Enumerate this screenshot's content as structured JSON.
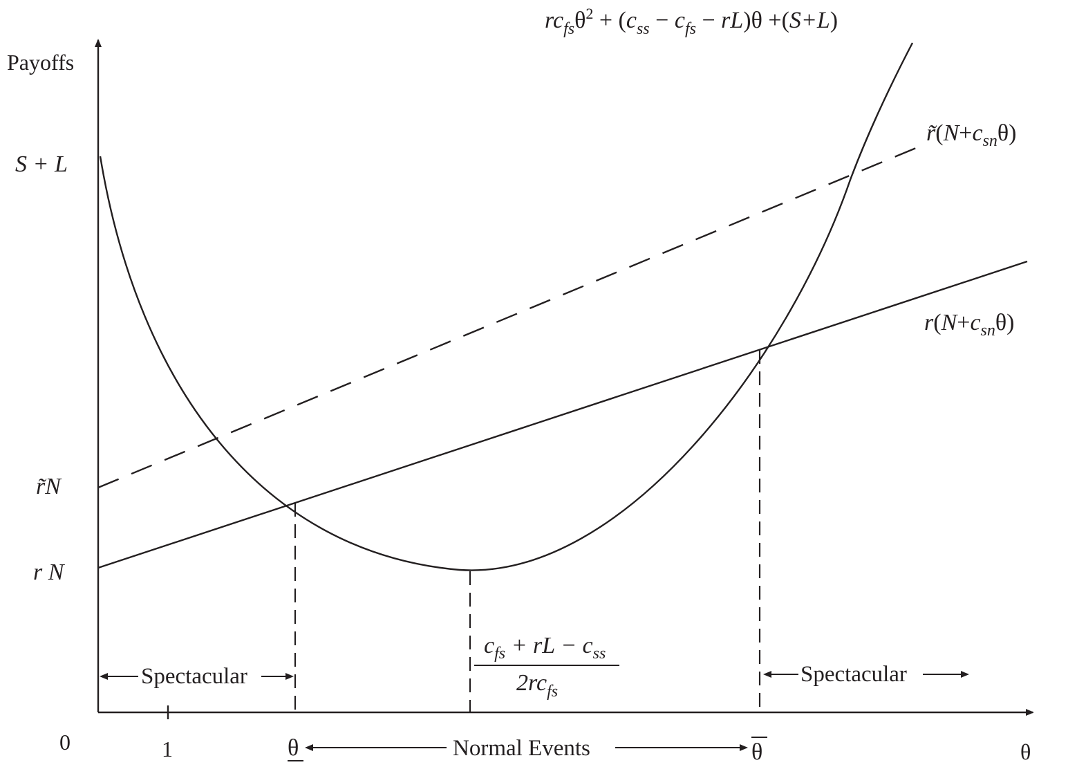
{
  "axes": {
    "y_label": "Payoffs",
    "x_label": "θ",
    "origin_label": "0",
    "x_tick_one": "1"
  },
  "y_ticks": {
    "s_plus_l": "S + L",
    "r_tilde_n": "r̃N",
    "r_n": "r N"
  },
  "x_ticks": {
    "theta_low": "θ",
    "theta_high": "θ"
  },
  "curve_labels": {
    "quadratic": {
      "prefix": "rc",
      "sub1": "fs",
      "theta1": "θ",
      "sq": "2",
      "mid1": " + (",
      "css": "c",
      "sub_ss": "ss",
      "minus1": " − ",
      "cfs": "c",
      "sub_fs": "fs",
      "minus2": " − ",
      "rL": "rL",
      "mid2": ")θ +(",
      "SL": "S+L",
      "close": ")"
    },
    "dashed_line": {
      "r": "r̃",
      "open": "(",
      "N": "N",
      "plus": "+",
      "c": "c",
      "sub": "sn",
      "theta": "θ",
      "close": ")"
    },
    "solid_line": {
      "r": "r",
      "open": "(",
      "N": "N",
      "plus": "+",
      "c": "c",
      "sub": "sn",
      "theta": "θ",
      "close": ")"
    }
  },
  "minimum_label": {
    "num_c1": "c",
    "num_sub1": "fs",
    "num_mid": " + rL − ",
    "num_c2": "c",
    "num_sub2": "ss",
    "den": "2rc",
    "den_sub": "fs"
  },
  "region_labels": {
    "left": "Spectacular",
    "right": "Spectacular",
    "middle": "Normal Events"
  }
}
